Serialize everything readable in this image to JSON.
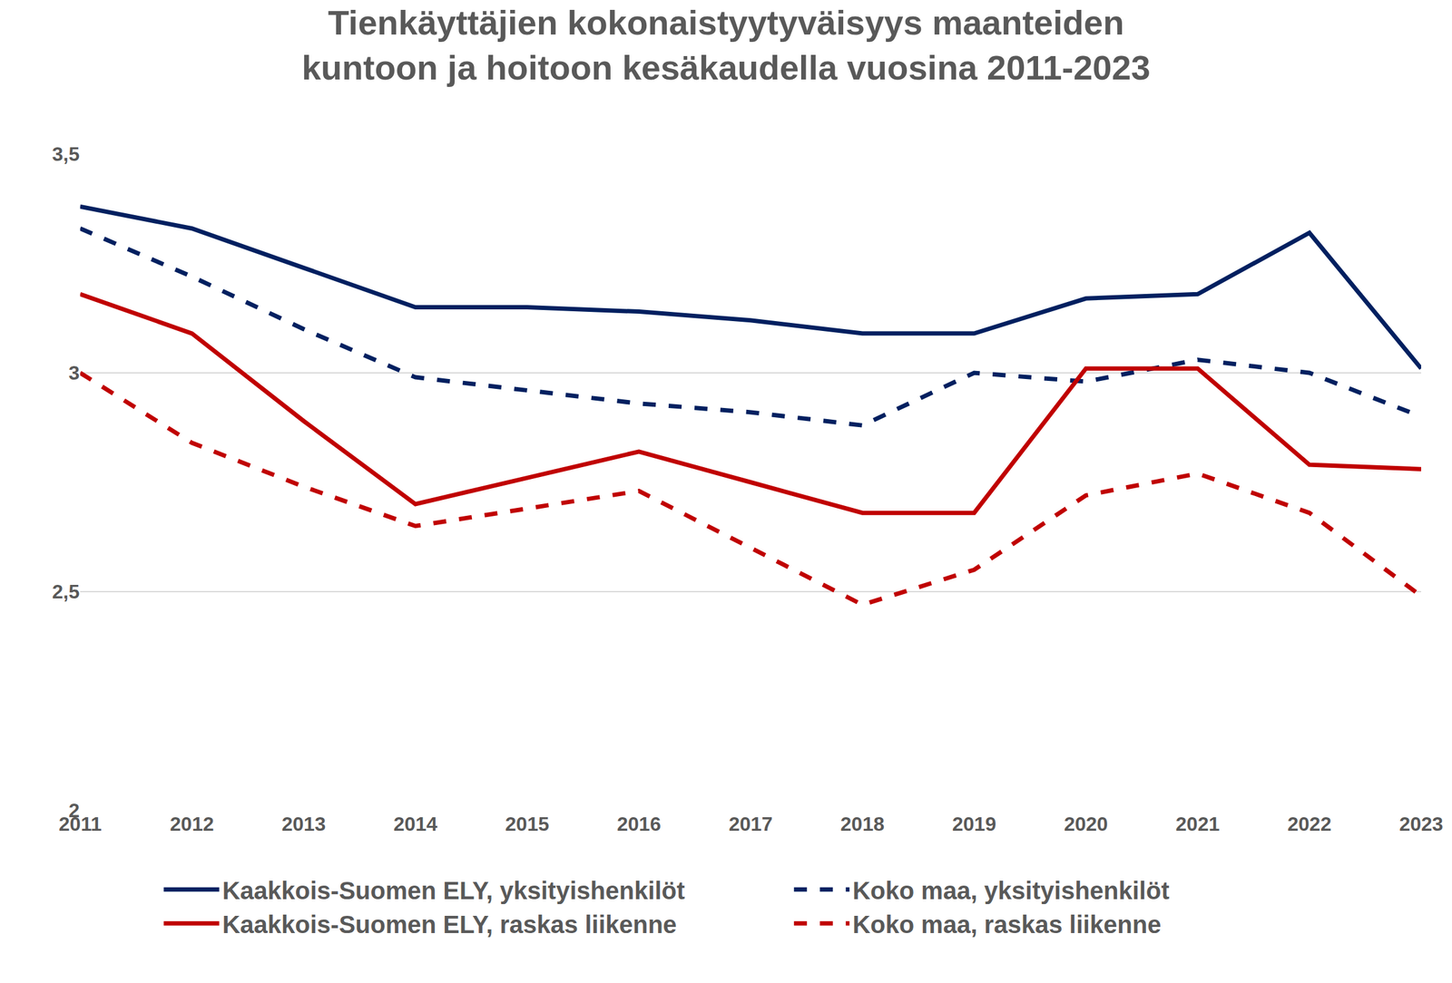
{
  "chart_data": {
    "type": "line",
    "title": "Tienkäyttäjien kokonaistyytyväisyys maanteiden kuntoon ja hoitoon kesäkaudella vuosina 2011-2023",
    "categories": [
      "2011",
      "2012",
      "2013",
      "2014",
      "2015",
      "2016",
      "2017",
      "2018",
      "2019",
      "2020",
      "2021",
      "2022",
      "2023"
    ],
    "series": [
      {
        "name": "Kaakkois-Suomen ELY, yksityishenkilöt",
        "color": "#002060",
        "line_style": "solid",
        "values": [
          3.38,
          3.33,
          3.24,
          3.15,
          3.15,
          3.14,
          3.12,
          3.09,
          3.09,
          3.17,
          3.18,
          3.32,
          3.01
        ]
      },
      {
        "name": "Koko maa, yksityishenkilöt",
        "color": "#002060",
        "line_style": "dash",
        "values": [
          3.33,
          3.22,
          3.1,
          2.99,
          2.96,
          2.93,
          2.91,
          2.88,
          3.0,
          2.98,
          3.03,
          3.0,
          2.9
        ]
      },
      {
        "name": "Kaakkois-Suomen ELY, raskas liikenne",
        "color": "#c00000",
        "line_style": "solid",
        "values": [
          3.18,
          3.09,
          2.89,
          2.7,
          2.76,
          2.82,
          2.75,
          2.68,
          2.68,
          3.01,
          3.01,
          2.79,
          2.78
        ]
      },
      {
        "name": "Koko maa, raskas liikenne",
        "color": "#c00000",
        "line_style": "dash",
        "values": [
          3.0,
          2.84,
          2.74,
          2.65,
          2.69,
          2.73,
          2.6,
          2.47,
          2.55,
          2.72,
          2.77,
          2.68,
          2.49
        ]
      }
    ],
    "ylim": [
      2,
      3.5
    ],
    "yticks": [
      2,
      {
        "value": 2.5,
        "label": "2,5"
      },
      3,
      {
        "value": 3.5,
        "label": "3,5"
      }
    ],
    "grid": true,
    "legend": "bottom"
  }
}
